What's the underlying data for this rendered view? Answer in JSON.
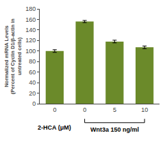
{
  "chart_data": {
    "type": "bar",
    "categories": [
      "0",
      "0",
      "5",
      "10"
    ],
    "values": [
      100,
      156,
      118,
      107
    ],
    "errors": [
      2.5,
      2.0,
      2.5,
      2.5
    ],
    "color": "#6b8a2a",
    "ylabel": "Normalized mRNA Levels\n(Percent of Cyclin D1/β-actin in\nuntreated cells)",
    "annotations": [
      "2-HCA (μM)",
      "Wnt3a 150 ng/ml"
    ],
    "ylim": [
      0,
      180
    ],
    "yticks": [
      0,
      20,
      40,
      60,
      80,
      100,
      120,
      140,
      160,
      180
    ],
    "grid": false
  }
}
